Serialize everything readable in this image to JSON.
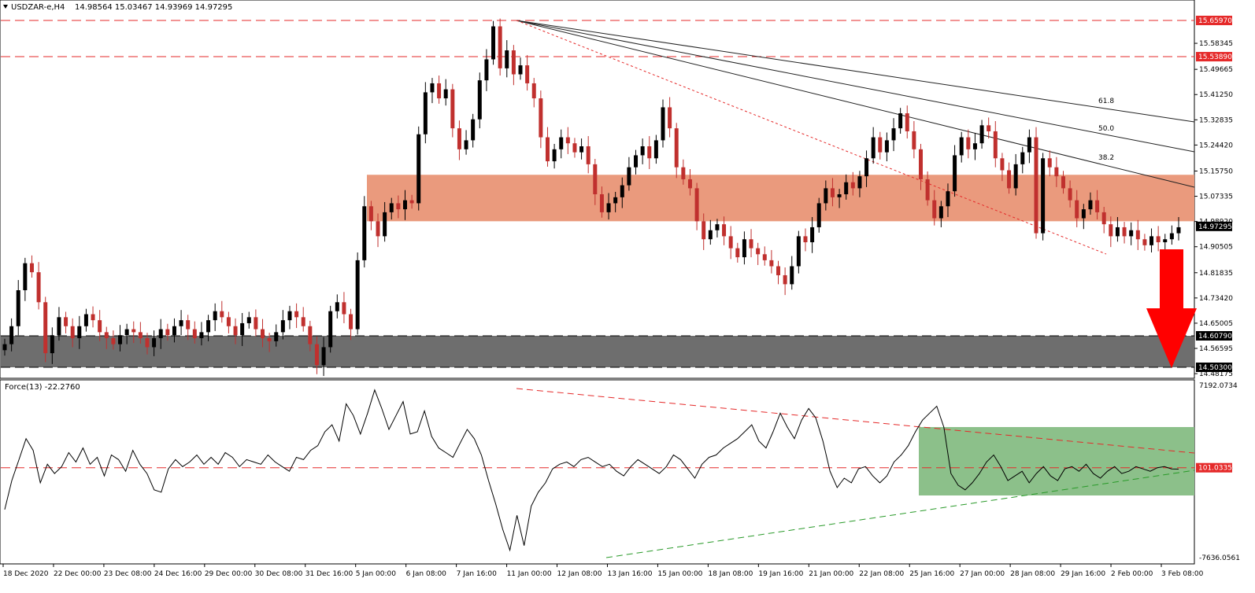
{
  "header": {
    "symbol": "USDZAR-e,H4",
    "ohlc": "14.98564 15.03467 14.93969 14.97295"
  },
  "chart_data": [
    {
      "type": "candlestick",
      "title": "USDZAR-e,H4",
      "ylim": [
        14.44,
        15.7
      ],
      "y_ticks": [
        "15.58345",
        "15.49665",
        "15.41250",
        "15.32835",
        "15.24420",
        "15.15750",
        "15.07335",
        "14.98920",
        "14.90505",
        "14.81835",
        "14.73420",
        "14.65005",
        "14.56595",
        "14.48175"
      ],
      "price_labels": [
        {
          "value": 15.6597,
          "label": "15.65970",
          "color": "#e52a2a"
        },
        {
          "value": 15.5389,
          "label": "15.53890",
          "color": "#e52a2a"
        },
        {
          "value": 14.97295,
          "label": "14.97295",
          "color": "#000000"
        },
        {
          "value": 14.6079,
          "label": "14.60790",
          "color": "#000000"
        },
        {
          "value": 14.503,
          "label": "14.50300",
          "color": "#000000"
        }
      ],
      "resistance_lines": [
        15.6597,
        15.5389
      ],
      "support_zone": [
        14.503,
        14.6079
      ],
      "resistance_zone": [
        14.99,
        15.145
      ],
      "fib_labels": [
        "61.8",
        "50.0",
        "38.2"
      ],
      "x_ticks": [
        "18 Dec 2020",
        "22 Dec 00:00",
        "23 Dec 08:00",
        "24 Dec 16:00",
        "29 Dec 00:00",
        "30 Dec 08:00",
        "31 Dec 16:00",
        "5 Jan 00:00",
        "6 Jan 08:00",
        "7 Jan 16:00",
        "11 Jan 00:00",
        "12 Jan 08:00",
        "13 Jan 16:00",
        "15 Jan 00:00",
        "18 Jan 08:00",
        "19 Jan 16:00",
        "21 Jan 00:00",
        "22 Jan 08:00",
        "25 Jan 16:00",
        "27 Jan 00:00",
        "28 Jan 08:00",
        "29 Jan 16:00",
        "2 Feb 00:00",
        "3 Feb 08:00"
      ],
      "closes": [
        14.58,
        14.64,
        14.76,
        14.85,
        14.82,
        14.72,
        14.55,
        14.61,
        14.67,
        14.64,
        14.6,
        14.64,
        14.68,
        14.66,
        14.62,
        14.6,
        14.58,
        14.61,
        14.63,
        14.62,
        14.6,
        14.57,
        14.6,
        14.63,
        14.61,
        14.64,
        14.66,
        14.63,
        14.6,
        14.62,
        14.66,
        14.69,
        14.67,
        14.64,
        14.61,
        14.65,
        14.67,
        14.63,
        14.6,
        14.59,
        14.62,
        14.66,
        14.69,
        14.67,
        14.64,
        14.58,
        14.51,
        14.57,
        14.69,
        14.72,
        14.68,
        14.63,
        14.86,
        15.04,
        14.99,
        14.94,
        15.02,
        15.05,
        15.03,
        15.06,
        15.05,
        15.28,
        15.42,
        15.45,
        15.4,
        15.43,
        15.3,
        15.23,
        15.26,
        15.33,
        15.46,
        15.53,
        15.64,
        15.5,
        15.56,
        15.48,
        15.51,
        15.45,
        15.4,
        15.27,
        15.19,
        15.23,
        15.27,
        15.25,
        15.22,
        15.24,
        15.18,
        15.08,
        15.02,
        15.05,
        15.07,
        15.11,
        15.17,
        15.21,
        15.24,
        15.2,
        15.26,
        15.37,
        15.3,
        15.17,
        15.13,
        15.1,
        14.99,
        14.93,
        14.96,
        14.98,
        14.94,
        14.9,
        14.87,
        14.93,
        14.9,
        14.88,
        14.86,
        14.84,
        14.81,
        14.78,
        14.84,
        14.94,
        14.92,
        14.97,
        15.05,
        15.1,
        15.07,
        15.08,
        15.12,
        15.1,
        15.14,
        15.2,
        15.27,
        15.22,
        15.26,
        15.3,
        15.35,
        15.29,
        15.23,
        15.13,
        15.06,
        15.0,
        15.04,
        15.09,
        15.21,
        15.27,
        15.23,
        15.25,
        15.31,
        15.29,
        15.2,
        15.16,
        15.1,
        15.18,
        15.22,
        15.27,
        14.95,
        15.2,
        15.17,
        15.14,
        15.1,
        15.06,
        15.0,
        15.03,
        15.06,
        15.02,
        14.98,
        14.94,
        14.97,
        14.94,
        14.96,
        14.93,
        14.91,
        14.94,
        14.92,
        14.93,
        14.95,
        14.97
      ]
    },
    {
      "type": "line",
      "title": "Force(13) -22.2760",
      "ylim": [
        -7636.0561,
        7192.0734
      ],
      "y_ticks": [
        "7192.0734",
        "101.0335",
        "-7636.0561"
      ],
      "level_label": "101.0335",
      "points_per_bar": 1,
      "values": [
        -3500,
        -1000,
        800,
        2600,
        1600,
        -1200,
        400,
        -400,
        200,
        1400,
        600,
        1800,
        400,
        1000,
        -600,
        1200,
        800,
        -200,
        1600,
        400,
        -400,
        -1800,
        -2000,
        0,
        800,
        200,
        600,
        1200,
        400,
        1000,
        400,
        1400,
        1000,
        200,
        800,
        600,
        400,
        1200,
        600,
        200,
        -200,
        1000,
        800,
        1600,
        2000,
        3200,
        3800,
        2400,
        5600,
        4600,
        3000,
        4800,
        6800,
        5200,
        3400,
        4600,
        5800,
        3000,
        3200,
        5000,
        2800,
        1800,
        1400,
        1000,
        2200,
        3400,
        2600,
        1200,
        -1000,
        -3000,
        -5200,
        -7000,
        -4000,
        -6600,
        -3200,
        -2000,
        -1200,
        0,
        400,
        600,
        200,
        800,
        1000,
        600,
        200,
        400,
        -200,
        -600,
        200,
        800,
        400,
        0,
        -400,
        200,
        1200,
        800,
        0,
        -800,
        400,
        1000,
        1200,
        1800,
        2200,
        2600,
        3200,
        3800,
        2400,
        1800,
        3200,
        4800,
        3600,
        2600,
        4200,
        5200,
        4400,
        2400,
        -200,
        -1600,
        -800,
        -1200,
        0,
        200,
        -600,
        -1200,
        -600,
        600,
        1200,
        2000,
        3200,
        4200,
        4800,
        5400,
        3600,
        -400,
        -1400,
        -1800,
        -1200,
        -400,
        600,
        1200,
        200,
        -1000,
        -600,
        -200,
        -1200,
        -400,
        200,
        -600,
        -1000,
        0,
        200,
        -200,
        400,
        -400,
        -800,
        -200,
        200,
        -400,
        -200,
        200,
        0,
        -200,
        100,
        200,
        0,
        -22
      ]
    }
  ]
}
